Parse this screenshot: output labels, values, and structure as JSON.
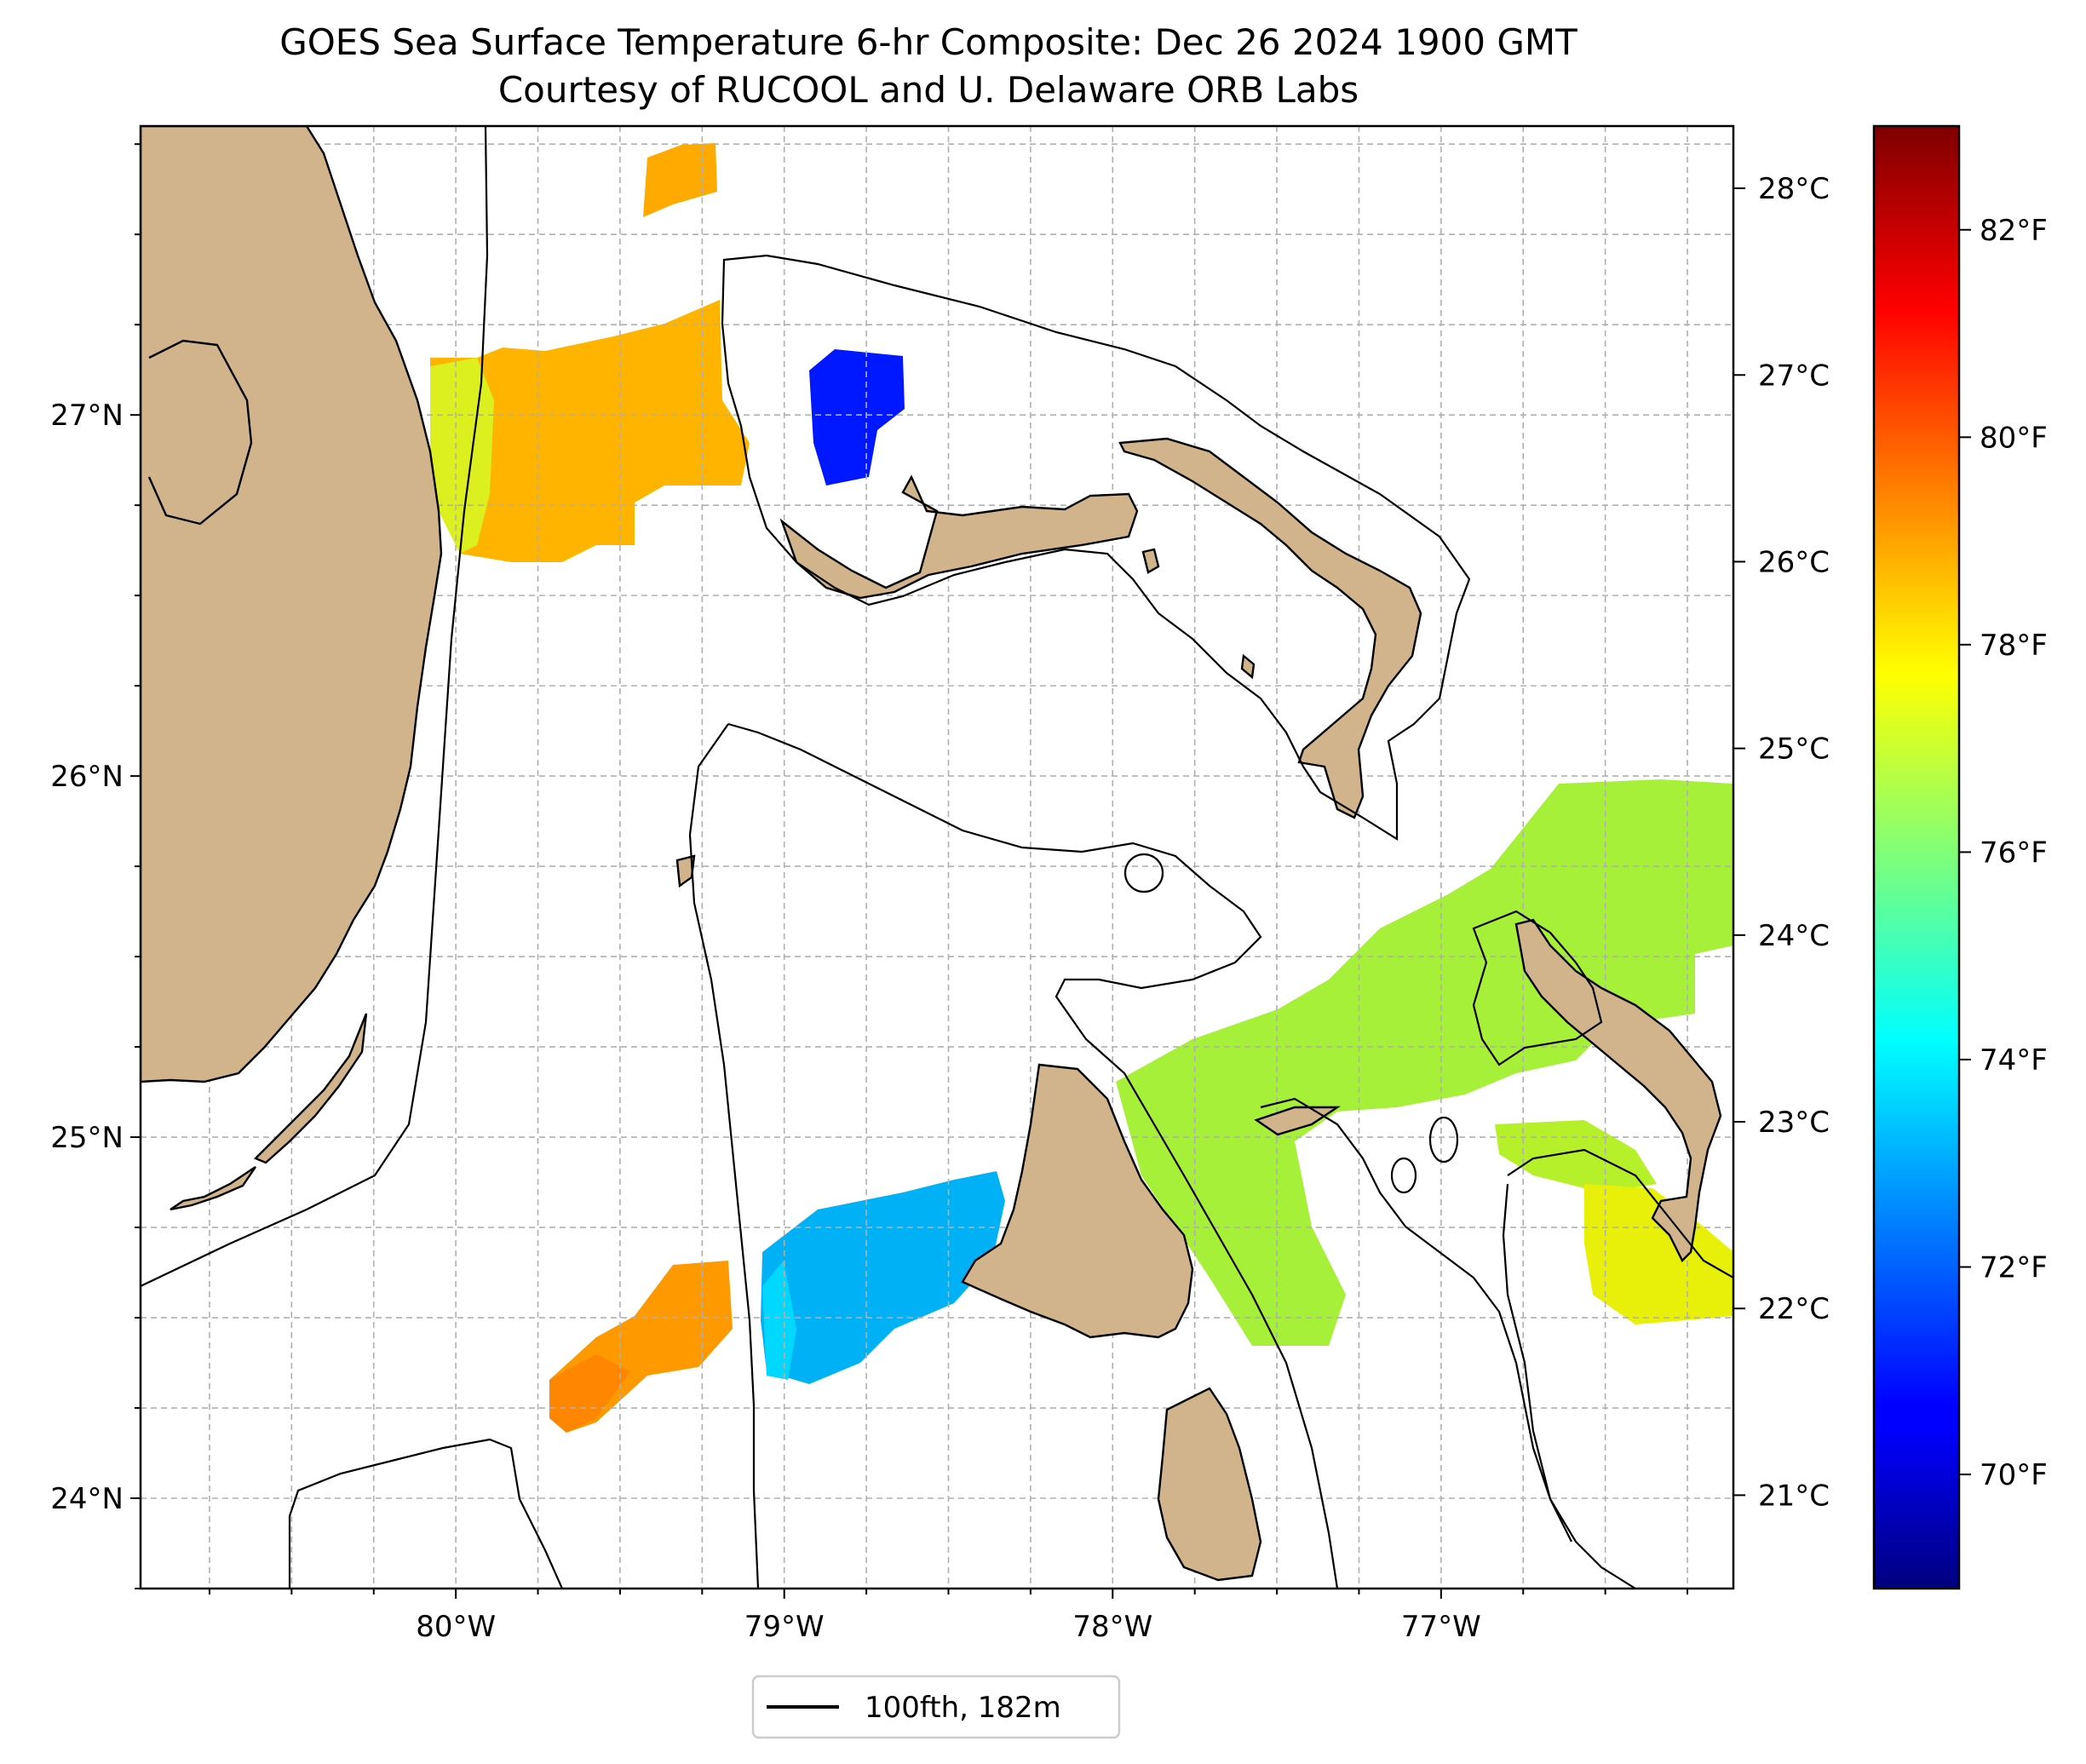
{
  "title": {
    "line1": "GOES Sea Surface Temperature 6-hr Composite: Dec 26 2024 1900 GMT",
    "line2": "Courtesy of RUCOOL and U. Delaware ORB Labs"
  },
  "map": {
    "lon_range": [
      -80.96,
      -76.11
    ],
    "lat_range": [
      23.75,
      27.8
    ],
    "lat_ticks": [
      {
        "value": 24,
        "label": "24°N"
      },
      {
        "value": 25,
        "label": "25°N"
      },
      {
        "value": 26,
        "label": "26°N"
      },
      {
        "value": 27,
        "label": "27°N"
      }
    ],
    "lon_ticks": [
      {
        "value": -80,
        "label": "80°W"
      },
      {
        "value": -79,
        "label": "79°W"
      },
      {
        "value": -78,
        "label": "78°W"
      },
      {
        "value": -77,
        "label": "77°W"
      }
    ],
    "land_color": "#d2b48c",
    "gridlines": true
  },
  "colorbar": {
    "colormap": "jet",
    "range_f": [
      68.9,
      83.0
    ],
    "celsius_ticks": [
      {
        "value": 21,
        "label": "21°C"
      },
      {
        "value": 22,
        "label": "22°C"
      },
      {
        "value": 23,
        "label": "23°C"
      },
      {
        "value": 24,
        "label": "24°C"
      },
      {
        "value": 25,
        "label": "25°C"
      },
      {
        "value": 26,
        "label": "26°C"
      },
      {
        "value": 27,
        "label": "27°C"
      },
      {
        "value": 28,
        "label": "28°C"
      }
    ],
    "fahrenheit_ticks": [
      {
        "value": 70,
        "label": "70°F"
      },
      {
        "value": 72,
        "label": "72°F"
      },
      {
        "value": 74,
        "label": "74°F"
      },
      {
        "value": 76,
        "label": "76°F"
      },
      {
        "value": 78,
        "label": "78°F"
      },
      {
        "value": 80,
        "label": "80°F"
      },
      {
        "value": 82,
        "label": "82°F"
      }
    ]
  },
  "legend": {
    "label": "100fth, 182m",
    "line_color": "#000000"
  }
}
